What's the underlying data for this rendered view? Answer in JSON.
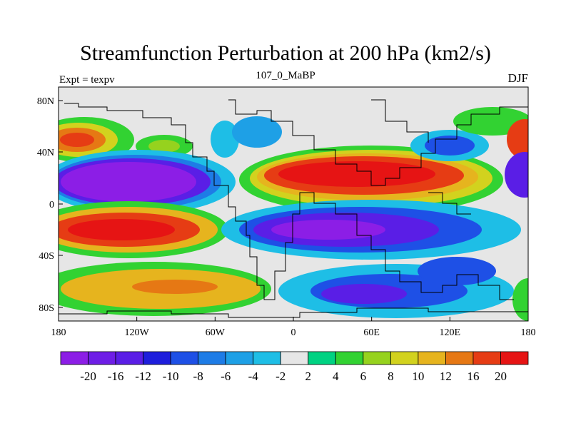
{
  "title": "Streamfunction Perturbation at 200 hPa (km2/s)",
  "left_subtitle": "Expt = texpv",
  "center_subtitle": "107_0_MaBP",
  "right_subtitle": "DJF",
  "lat_ticks": [
    "80N",
    "40N",
    "0",
    "40S",
    "80S"
  ],
  "lon_ticks": [
    "180",
    "120W",
    "60W",
    "0",
    "60E",
    "120E",
    "180"
  ],
  "colorbar": {
    "colors": [
      "#8c1ee6",
      "#6e1ee6",
      "#5a1ee6",
      "#1e1edc",
      "#1e50e6",
      "#1e7ce6",
      "#1ea0e6",
      "#1ebee6",
      "#e6e6e6",
      "#00d282",
      "#32d232",
      "#96d21e",
      "#d2d21e",
      "#e6b41e",
      "#e67814",
      "#e63c14",
      "#e61414"
    ],
    "labels": [
      "-20",
      "-16",
      "-12",
      "-10",
      "-8",
      "-6",
      "-4",
      "-2",
      "2",
      "4",
      "6",
      "8",
      "10",
      "12",
      "16",
      "20"
    ]
  }
}
